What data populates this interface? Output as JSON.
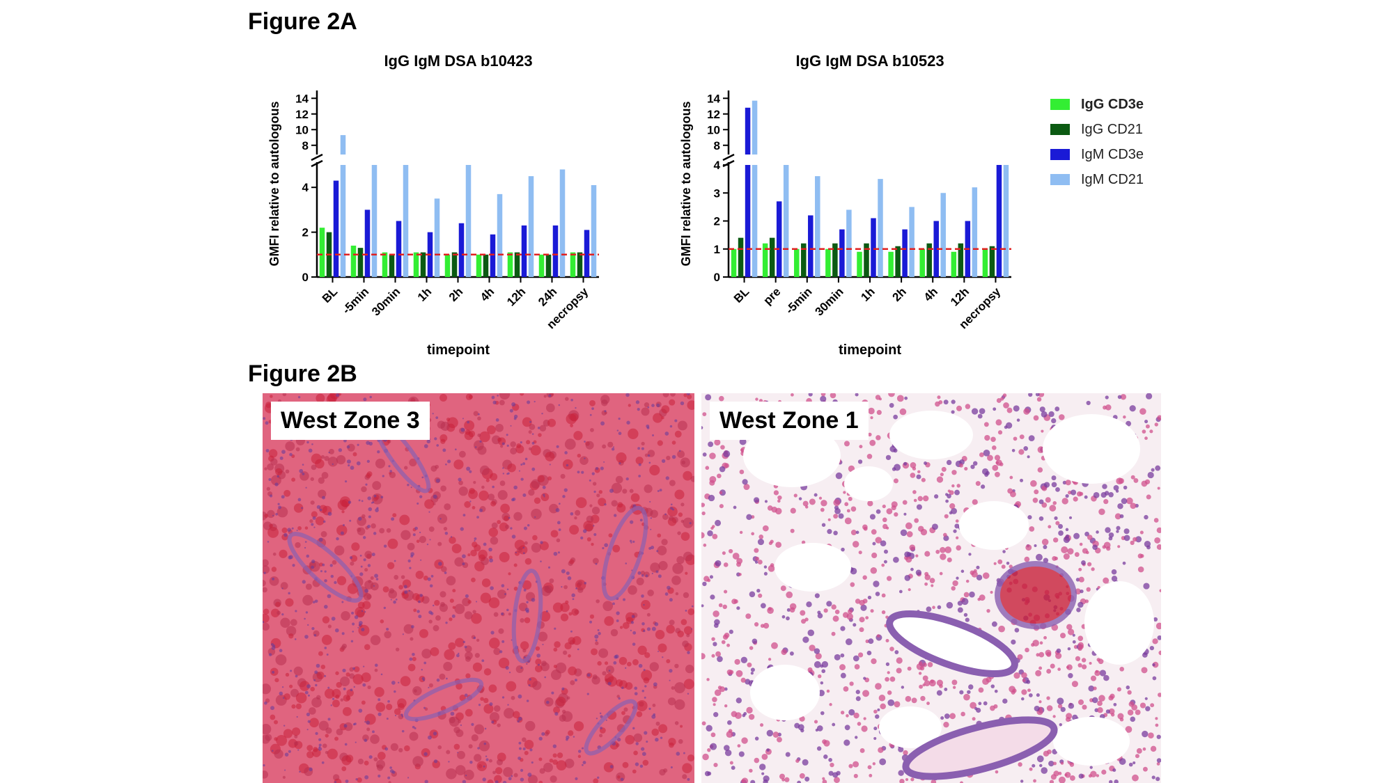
{
  "figure_2a_label": "Figure 2A",
  "figure_2b_label": "Figure 2B",
  "legend": [
    {
      "name": "IgG CD3e",
      "color": "#33ee33"
    },
    {
      "name": "IgG CD21",
      "color": "#0b5a12"
    },
    {
      "name": "IgM CD3e",
      "color": "#1a1ad6"
    },
    {
      "name": "IgM CD21",
      "color": "#8fbdf2"
    }
  ],
  "reference_line": {
    "value": 1,
    "color": "#e02020",
    "style": "dashed"
  },
  "chart_data": [
    {
      "type": "bar",
      "title": "IgG IgM DSA b10423",
      "xlabel": "timepoint",
      "ylabel": "GMFI relative to autologous",
      "y_axis_break": {
        "lower": [
          0,
          5
        ],
        "upper": [
          7,
          15
        ]
      },
      "yticks_lower": [
        0,
        2,
        4
      ],
      "yticks_upper": [
        8,
        10,
        12,
        14
      ],
      "categories": [
        "BL",
        "-5min",
        "30min",
        "1h",
        "2h",
        "4h",
        "12h",
        "24h",
        "necropsy"
      ],
      "series": [
        {
          "name": "IgG CD3e",
          "values": [
            2.2,
            1.4,
            1.1,
            1.1,
            1.0,
            1.0,
            1.1,
            1.0,
            1.1
          ]
        },
        {
          "name": "IgG CD21",
          "values": [
            2.0,
            1.3,
            1.0,
            1.1,
            1.1,
            1.0,
            1.1,
            1.0,
            1.1
          ]
        },
        {
          "name": "IgM CD3e",
          "values": [
            4.3,
            3.0,
            2.5,
            2.0,
            2.4,
            1.9,
            2.3,
            2.3,
            2.1
          ]
        },
        {
          "name": "IgM CD21",
          "values": [
            9.3,
            7.0,
            7.0,
            3.5,
            7.0,
            3.7,
            4.5,
            4.8,
            4.1
          ]
        }
      ]
    },
    {
      "type": "bar",
      "title": "IgG IgM DSA b10523",
      "xlabel": "timepoint",
      "ylabel": "GMFI relative to autologous",
      "y_axis_break": {
        "lower": [
          0,
          4
        ],
        "upper": [
          7,
          15
        ]
      },
      "yticks_lower": [
        0,
        1,
        2,
        3,
        4
      ],
      "yticks_upper": [
        8,
        10,
        12,
        14
      ],
      "categories": [
        "BL",
        "pre",
        "-5min",
        "30min",
        "1h",
        "2h",
        "4h",
        "12h",
        "necropsy"
      ],
      "series": [
        {
          "name": "IgG CD3e",
          "values": [
            1.0,
            1.2,
            1.0,
            1.0,
            0.9,
            0.9,
            1.0,
            0.9,
            1.0
          ]
        },
        {
          "name": "IgG CD21",
          "values": [
            1.4,
            1.4,
            1.2,
            1.2,
            1.2,
            1.1,
            1.2,
            1.2,
            1.1
          ]
        },
        {
          "name": "IgM CD3e",
          "values": [
            12.8,
            2.7,
            2.2,
            1.7,
            2.1,
            1.7,
            2.0,
            2.0,
            7.0
          ]
        },
        {
          "name": "IgM CD21",
          "values": [
            13.7,
            7.0,
            3.6,
            2.4,
            3.5,
            2.5,
            3.0,
            3.2,
            7.0
          ]
        }
      ]
    }
  ],
  "panels": [
    {
      "label": "West Zone 3",
      "tone": "#e0647f",
      "accent": "#b83050",
      "blob": "#c8203a",
      "vessel": "#8a5fb0"
    },
    {
      "label": "West Zone 1",
      "tone": "#f7eef2",
      "accent": "#d0508c",
      "blob": "#c8203a",
      "vessel": "#8a5fb0"
    }
  ]
}
